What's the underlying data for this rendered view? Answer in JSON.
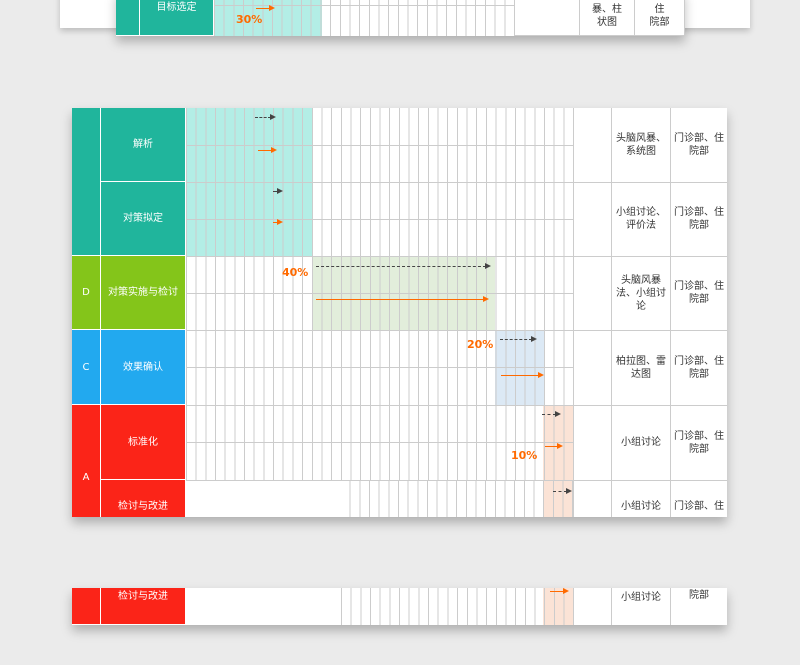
{
  "colors": {
    "plan": "#20b59c",
    "do": "#84c51a",
    "check": "#22a9ef",
    "act": "#fb2418",
    "progress": "#ff6a00",
    "plan_shade": "#b3eee6",
    "do_shade": "#e2eedb",
    "check_shade": "#dce9f5",
    "act_shade": "#fbe3d6"
  },
  "top": {
    "task": "目标选定",
    "percent": "30%",
    "method": "头脑风暴、柱\n状图",
    "dept": "门诊部、住\n院部"
  },
  "main": {
    "phases": {
      "D": "D",
      "C": "C",
      "A": "A"
    },
    "rows": [
      {
        "task": "解析",
        "method": "头脑风暴、系统图",
        "dept": "门诊部、住院部"
      },
      {
        "task": "对策拟定",
        "method": "小组讨论、评价法",
        "dept": "门诊部、住院部"
      },
      {
        "task": "对策实施与检讨",
        "method": "头脑风暴法、小组讨论",
        "dept": "门诊部、住院部",
        "percent": "40%"
      },
      {
        "task": "效果确认",
        "method": "柏拉图、雷达图",
        "dept": "门诊部、住院部",
        "percent": "20%"
      },
      {
        "task": "标准化",
        "method": "小组讨论",
        "dept": "门诊部、住院部",
        "percent": "10%"
      },
      {
        "task": "检讨与改进",
        "method": "小组讨论",
        "dept": "门诊部、住"
      }
    ]
  },
  "bottom": {
    "task": "检讨与改进",
    "method": "小组讨论",
    "dept": "院部"
  }
}
